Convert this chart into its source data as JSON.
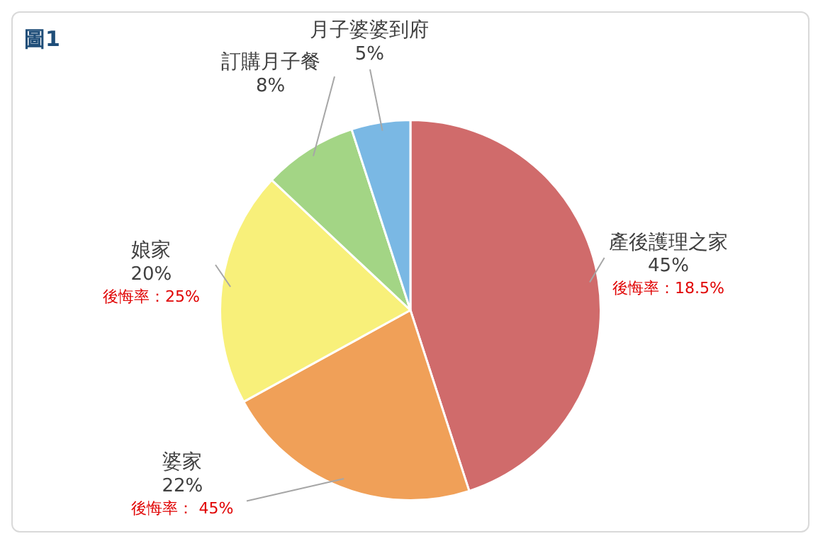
{
  "chart_data": {
    "type": "pie",
    "title": "圖1",
    "categories": [
      "產後護理之家",
      "婆家",
      "娘家",
      "訂購月子餐",
      "月子婆婆到府"
    ],
    "values": [
      45,
      22,
      20,
      8,
      5
    ],
    "value_labels": [
      "45%",
      "22%",
      "20%",
      "8%",
      "5%"
    ],
    "colors": [
      "#d06b6b",
      "#f0a058",
      "#f8f07a",
      "#a3d585",
      "#7ab8e4"
    ],
    "legend": false,
    "annotations": [
      {
        "text": "後悔率：18.5%",
        "x": "產後護理之家"
      },
      {
        "text": "後悔率： 45%",
        "x": "婆家"
      },
      {
        "text": "後悔率：25%",
        "x": "娘家"
      }
    ]
  }
}
